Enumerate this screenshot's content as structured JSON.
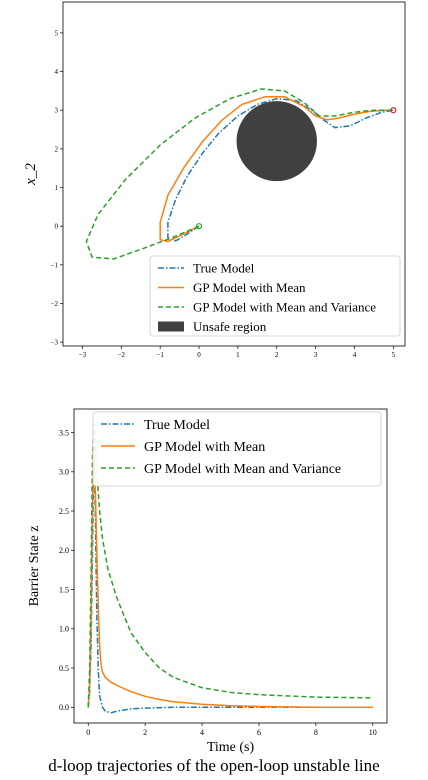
{
  "caption": "d-loop trajectories of the open-loop unstable line",
  "chart_data": [
    {
      "type": "line",
      "title": "",
      "xlabel": "",
      "ylabel": "x_2",
      "xlim": [
        -3.5,
        5.3
      ],
      "ylim": [
        -3.1,
        5.8
      ],
      "xticks": [
        -3,
        -2,
        -1,
        0,
        1,
        2,
        3,
        4,
        5
      ],
      "yticks": [
        -3,
        -2,
        -1,
        0,
        1,
        2,
        3,
        4,
        5
      ],
      "grid": false,
      "legend_position": "lower-right",
      "series": [
        {
          "name": "True Model",
          "color": "#1f77b4",
          "style": "dashdot",
          "x": [
            0,
            -0.3,
            -0.6,
            -0.8,
            -0.8,
            -0.6,
            -0.3,
            0.1,
            0.5,
            1.0,
            1.5,
            2.0,
            2.5,
            2.9,
            3.2,
            3.5,
            3.9,
            4.3,
            4.7,
            5.0
          ],
          "y": [
            0,
            -0.2,
            -0.38,
            -0.3,
            0.1,
            0.7,
            1.3,
            1.9,
            2.4,
            2.85,
            3.15,
            3.3,
            3.25,
            3.0,
            2.75,
            2.55,
            2.6,
            2.8,
            2.95,
            3.0
          ]
        },
        {
          "name": "GP Model with Mean",
          "color": "#ff7f0e",
          "style": "solid",
          "x": [
            0,
            -0.4,
            -0.8,
            -1.0,
            -1.0,
            -0.8,
            -0.4,
            0.1,
            0.6,
            1.1,
            1.7,
            2.2,
            2.7,
            3.0,
            3.3,
            3.6,
            4.0,
            4.4,
            4.8,
            5.0
          ],
          "y": [
            0,
            -0.2,
            -0.4,
            -0.35,
            0.1,
            0.8,
            1.5,
            2.2,
            2.75,
            3.15,
            3.35,
            3.35,
            3.1,
            2.85,
            2.75,
            2.8,
            2.9,
            2.97,
            3.0,
            3.0
          ]
        },
        {
          "name": "GP Model with Mean and Variance",
          "color": "#2ca02c",
          "style": "dashed",
          "x": [
            0,
            -0.7,
            -1.5,
            -2.2,
            -2.75,
            -2.9,
            -2.6,
            -1.9,
            -1.0,
            -0.1,
            0.8,
            1.6,
            2.2,
            2.7,
            3.1,
            3.5,
            4.0,
            4.5,
            5.0
          ],
          "y": [
            0,
            -0.3,
            -0.6,
            -0.85,
            -0.8,
            -0.4,
            0.3,
            1.2,
            2.1,
            2.8,
            3.3,
            3.55,
            3.5,
            3.2,
            2.85,
            2.85,
            2.95,
            3.0,
            3.0
          ]
        }
      ],
      "unsafe_region": {
        "name": "Unsafe region",
        "center": [
          2.0,
          2.2
        ],
        "radius": 1.05,
        "color": "#404040"
      },
      "markers": {
        "start": [
          0,
          0
        ],
        "goal": [
          5,
          3
        ],
        "start_color": "#2ca02c",
        "goal_color": "#d62728"
      }
    },
    {
      "type": "line",
      "title": "",
      "xlabel": "Time (s)",
      "ylabel": "Barrier State z",
      "xlim": [
        -0.5,
        10.5
      ],
      "ylim": [
        -0.2,
        3.8
      ],
      "xticks": [
        0,
        2,
        4,
        6,
        8,
        10
      ],
      "yticks": [
        0.0,
        0.5,
        1.0,
        1.5,
        2.0,
        2.5,
        3.0,
        3.5
      ],
      "tick_labels_y": [
        "0.0",
        "0.5",
        "1.0",
        "1.5",
        "2.0",
        "2.5",
        "3.0",
        "3.5"
      ],
      "grid": false,
      "legend_position": "top-right",
      "series": [
        {
          "name": "True Model",
          "color": "#1f77b4",
          "style": "dashdot",
          "x": [
            0,
            0.05,
            0.1,
            0.15,
            0.2,
            0.25,
            0.3,
            0.35,
            0.4,
            0.5,
            0.6,
            0.8,
            1.0,
            1.5,
            2,
            3,
            4,
            6,
            8,
            10
          ],
          "y": [
            0,
            0.2,
            0.8,
            2.0,
            3.3,
            2.5,
            1.2,
            0.5,
            0.15,
            0.0,
            -0.05,
            -0.07,
            -0.05,
            -0.02,
            -0.01,
            0.0,
            0.0,
            0.0,
            0.0,
            0.0
          ]
        },
        {
          "name": "GP Model with Mean",
          "color": "#ff7f0e",
          "style": "solid",
          "x": [
            0,
            0.05,
            0.1,
            0.15,
            0.2,
            0.25,
            0.3,
            0.35,
            0.4,
            0.45,
            0.5,
            0.6,
            0.8,
            1.0,
            1.5,
            2,
            2.5,
            3,
            4,
            5,
            6,
            8,
            10
          ],
          "y": [
            0,
            0.3,
            1.2,
            2.6,
            3.3,
            2.8,
            2.0,
            1.3,
            0.8,
            0.55,
            0.45,
            0.38,
            0.32,
            0.28,
            0.2,
            0.14,
            0.1,
            0.07,
            0.04,
            0.02,
            0.01,
            0.0,
            0.0
          ]
        },
        {
          "name": "GP Model with Mean and Variance",
          "color": "#2ca02c",
          "style": "dashed",
          "x": [
            0,
            0.05,
            0.1,
            0.15,
            0.2,
            0.25,
            0.3,
            0.4,
            0.5,
            0.7,
            1.0,
            1.5,
            2,
            2.5,
            3,
            4,
            5,
            6,
            8,
            10
          ],
          "y": [
            0,
            0.5,
            1.8,
            3.2,
            3.65,
            3.4,
            3.0,
            2.5,
            2.15,
            1.75,
            1.4,
            0.95,
            0.7,
            0.5,
            0.38,
            0.25,
            0.19,
            0.16,
            0.13,
            0.12
          ]
        }
      ]
    }
  ]
}
